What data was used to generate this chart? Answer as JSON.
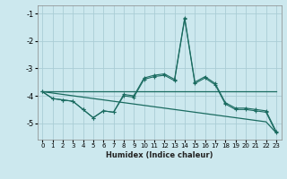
{
  "xlabel": "Humidex (Indice chaleur)",
  "bg_color": "#cce8ee",
  "grid_color": "#aacdd5",
  "line_color": "#1a6b60",
  "x_values": [
    0,
    1,
    2,
    3,
    4,
    5,
    6,
    7,
    8,
    9,
    10,
    11,
    12,
    13,
    14,
    15,
    16,
    17,
    18,
    19,
    20,
    21,
    22,
    23
  ],
  "line_flat1": [
    -3.85,
    -3.85,
    -3.85,
    -3.85,
    -3.85,
    -3.85,
    -3.85,
    -3.85,
    -3.85,
    -3.85,
    -3.85,
    -3.85,
    -3.85,
    -3.85,
    -3.85,
    -3.85,
    -3.85,
    -3.85,
    -3.85,
    -3.85,
    -3.85,
    -3.85,
    -3.85,
    -3.85
  ],
  "line_flat2": [
    -3.85,
    -3.9,
    -3.95,
    -4.0,
    -4.05,
    -4.1,
    -4.15,
    -4.2,
    -4.25,
    -4.3,
    -4.35,
    -4.4,
    -4.45,
    -4.5,
    -4.55,
    -4.6,
    -4.65,
    -4.7,
    -4.75,
    -4.8,
    -4.85,
    -4.9,
    -4.95,
    -5.35
  ],
  "line_mid1": [
    -3.85,
    -4.1,
    -4.15,
    -4.2,
    -4.5,
    -4.8,
    -4.55,
    -4.6,
    -3.95,
    -4.0,
    -3.35,
    -3.25,
    -3.2,
    -3.4,
    -1.15,
    -3.5,
    -3.3,
    -3.55,
    -4.25,
    -4.45,
    -4.45,
    -4.5,
    -4.55,
    -5.3
  ],
  "line_mid2": [
    -3.85,
    -4.1,
    -4.15,
    -4.2,
    -4.5,
    -4.8,
    -4.55,
    -4.6,
    -4.0,
    -4.05,
    -3.4,
    -3.3,
    -3.25,
    -3.45,
    -1.2,
    -3.55,
    -3.35,
    -3.6,
    -4.3,
    -4.5,
    -4.5,
    -4.55,
    -4.6,
    -5.35
  ],
  "ylim": [
    -5.6,
    -0.7
  ],
  "xlim": [
    -0.5,
    23.5
  ],
  "yticks": [
    -5,
    -4,
    -3,
    -2,
    -1
  ],
  "xticks": [
    0,
    1,
    2,
    3,
    4,
    5,
    6,
    7,
    8,
    9,
    10,
    11,
    12,
    13,
    14,
    15,
    16,
    17,
    18,
    19,
    20,
    21,
    22,
    23
  ]
}
